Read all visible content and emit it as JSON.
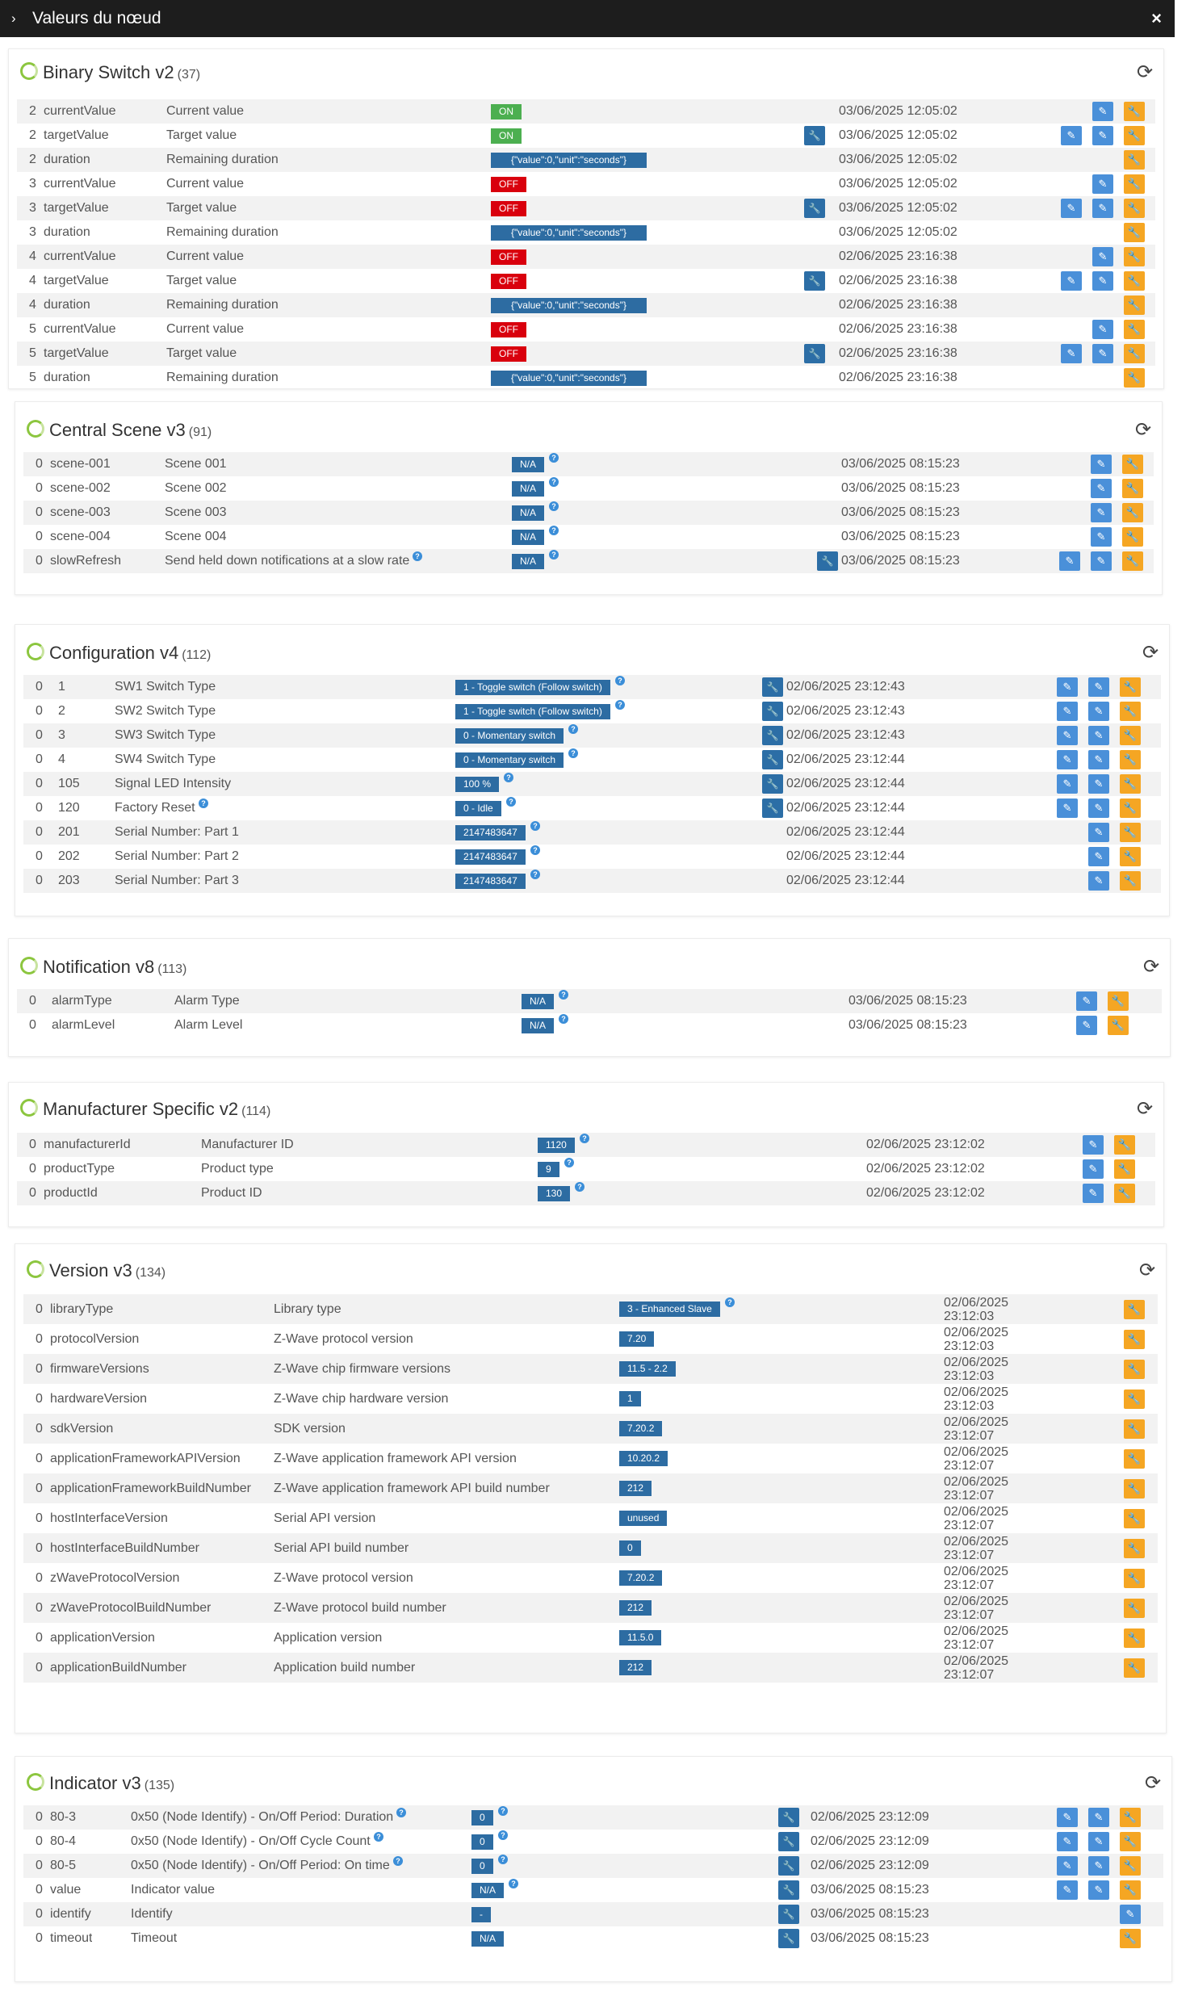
{
  "window": {
    "title": "Valeurs du nœud",
    "close_label": "×",
    "chevron": "›"
  },
  "icons": {
    "refresh": "refresh-icon",
    "edit": "pencil-icon",
    "wrench": "wrench-icon",
    "help": "help-icon",
    "loading": "loading-ring-icon"
  },
  "colors": {
    "on": "#4caf50",
    "off": "#d9000d",
    "value": "#2d6ca2",
    "edit_button": "#4a90d9",
    "config_button": "#f5a623",
    "ring": "#8cc63f"
  },
  "panels": {
    "binary": {
      "title": "Binary Switch v2",
      "count": "(37)",
      "rows": [
        [
          "2",
          "currentValue",
          "Current value",
          "ON",
          "03/06/2025 12:05:02"
        ],
        [
          "2",
          "targetValue",
          "Target value",
          "ON",
          "03/06/2025 12:05:02"
        ],
        [
          "2",
          "duration",
          "Remaining duration",
          "{\"value\":0,\"unit\":\"seconds\"}",
          "03/06/2025 12:05:02"
        ],
        [
          "3",
          "currentValue",
          "Current value",
          "OFF",
          "03/06/2025 12:05:02"
        ],
        [
          "3",
          "targetValue",
          "Target value",
          "OFF",
          "03/06/2025 12:05:02"
        ],
        [
          "3",
          "duration",
          "Remaining duration",
          "{\"value\":0,\"unit\":\"seconds\"}",
          "03/06/2025 12:05:02"
        ],
        [
          "4",
          "currentValue",
          "Current value",
          "OFF",
          "02/06/2025 23:16:38"
        ],
        [
          "4",
          "targetValue",
          "Target value",
          "OFF",
          "02/06/2025 23:16:38"
        ],
        [
          "4",
          "duration",
          "Remaining duration",
          "{\"value\":0,\"unit\":\"seconds\"}",
          "02/06/2025 23:16:38"
        ],
        [
          "5",
          "currentValue",
          "Current value",
          "OFF",
          "02/06/2025 23:16:38"
        ],
        [
          "5",
          "targetValue",
          "Target value",
          "OFF",
          "02/06/2025 23:16:38"
        ],
        [
          "5",
          "duration",
          "Remaining duration",
          "{\"value\":0,\"unit\":\"seconds\"}",
          "02/06/2025 23:16:38"
        ]
      ]
    },
    "central": {
      "title": "Central Scene v3",
      "count": "(91)",
      "rows": [
        [
          "0",
          "scene-001",
          "Scene 001",
          "N/A",
          "03/06/2025 08:15:23"
        ],
        [
          "0",
          "scene-002",
          "Scene 002",
          "N/A",
          "03/06/2025 08:15:23"
        ],
        [
          "0",
          "scene-003",
          "Scene 003",
          "N/A",
          "03/06/2025 08:15:23"
        ],
        [
          "0",
          "scene-004",
          "Scene 004",
          "N/A",
          "03/06/2025 08:15:23"
        ],
        [
          "0",
          "slowRefresh",
          "Send held down notifications at a slow rate",
          "N/A",
          "03/06/2025 08:15:23"
        ]
      ]
    },
    "config": {
      "title": "Configuration v4",
      "count": "(112)",
      "rows": [
        [
          "0",
          "1",
          "SW1 Switch Type",
          "1 - Toggle switch (Follow switch)",
          "02/06/2025 23:12:43"
        ],
        [
          "0",
          "2",
          "SW2 Switch Type",
          "1 - Toggle switch (Follow switch)",
          "02/06/2025 23:12:43"
        ],
        [
          "0",
          "3",
          "SW3 Switch Type",
          "0 - Momentary switch",
          "02/06/2025 23:12:43"
        ],
        [
          "0",
          "4",
          "SW4 Switch Type",
          "0 - Momentary switch",
          "02/06/2025 23:12:44"
        ],
        [
          "0",
          "105",
          "Signal LED Intensity",
          "100 %",
          "02/06/2025 23:12:44"
        ],
        [
          "0",
          "120",
          "Factory Reset",
          "0 - Idle",
          "02/06/2025 23:12:44"
        ],
        [
          "0",
          "201",
          "Serial Number: Part 1",
          "2147483647",
          "02/06/2025 23:12:44"
        ],
        [
          "0",
          "202",
          "Serial Number: Part 2",
          "2147483647",
          "02/06/2025 23:12:44"
        ],
        [
          "0",
          "203",
          "Serial Number: Part 3",
          "2147483647",
          "02/06/2025 23:12:44"
        ]
      ]
    },
    "notif": {
      "title": "Notification v8",
      "count": "(113)",
      "rows": [
        [
          "0",
          "alarmType",
          "Alarm Type",
          "N/A",
          "03/06/2025 08:15:23"
        ],
        [
          "0",
          "alarmLevel",
          "Alarm Level",
          "N/A",
          "03/06/2025 08:15:23"
        ]
      ]
    },
    "manuf": {
      "title": "Manufacturer Specific v2",
      "count": "(114)",
      "rows": [
        [
          "0",
          "manufacturerId",
          "Manufacturer ID",
          "1120",
          "02/06/2025 23:12:02"
        ],
        [
          "0",
          "productType",
          "Product type",
          "9",
          "02/06/2025 23:12:02"
        ],
        [
          "0",
          "productId",
          "Product ID",
          "130",
          "02/06/2025 23:12:02"
        ]
      ]
    },
    "version": {
      "title": "Version v3",
      "count": "(134)",
      "rows": [
        [
          "0",
          "libraryType",
          "Library type",
          "3 - Enhanced Slave",
          "02/06/2025",
          "23:12:03"
        ],
        [
          "0",
          "protocolVersion",
          "Z-Wave protocol version",
          "7.20",
          "02/06/2025",
          "23:12:03"
        ],
        [
          "0",
          "firmwareVersions",
          "Z-Wave chip firmware versions",
          "11.5 - 2.2",
          "02/06/2025",
          "23:12:03"
        ],
        [
          "0",
          "hardwareVersion",
          "Z-Wave chip hardware version",
          "1",
          "02/06/2025",
          "23:12:03"
        ],
        [
          "0",
          "sdkVersion",
          "SDK version",
          "7.20.2",
          "02/06/2025",
          "23:12:07"
        ],
        [
          "0",
          "applicationFrameworkAPIVersion",
          "Z-Wave application framework API version",
          "10.20.2",
          "02/06/2025",
          "23:12:07"
        ],
        [
          "0",
          "applicationFrameworkBuildNumber",
          "Z-Wave application framework API build number",
          "212",
          "02/06/2025",
          "23:12:07"
        ],
        [
          "0",
          "hostInterfaceVersion",
          "Serial API version",
          "unused",
          "02/06/2025",
          "23:12:07"
        ],
        [
          "0",
          "hostInterfaceBuildNumber",
          "Serial API build number",
          "0",
          "02/06/2025",
          "23:12:07"
        ],
        [
          "0",
          "zWaveProtocolVersion",
          "Z-Wave protocol version",
          "7.20.2",
          "02/06/2025",
          "23:12:07"
        ],
        [
          "0",
          "zWaveProtocolBuildNumber",
          "Z-Wave protocol build number",
          "212",
          "02/06/2025",
          "23:12:07"
        ],
        [
          "0",
          "applicationVersion",
          "Application version",
          "11.5.0",
          "02/06/2025",
          "23:12:07"
        ],
        [
          "0",
          "applicationBuildNumber",
          "Application build number",
          "212",
          "02/06/2025",
          "23:12:07"
        ]
      ]
    },
    "indicator": {
      "title": "Indicator v3",
      "count": "(135)",
      "rows": [
        [
          "0",
          "80-3",
          "0x50 (Node Identify) - On/Off Period: Duration",
          "0",
          "02/06/2025 23:12:09"
        ],
        [
          "0",
          "80-4",
          "0x50 (Node Identify) - On/Off Cycle Count",
          "0",
          "02/06/2025 23:12:09"
        ],
        [
          "0",
          "80-5",
          "0x50 (Node Identify) - On/Off Period: On time",
          "0",
          "02/06/2025 23:12:09"
        ],
        [
          "0",
          "value",
          "Indicator value",
          "N/A",
          "03/06/2025 08:15:23"
        ],
        [
          "0",
          "identify",
          "Identify",
          "-",
          "03/06/2025 08:15:23"
        ],
        [
          "0",
          "timeout",
          "Timeout",
          "N/A",
          "03/06/2025 08:15:23"
        ]
      ]
    }
  }
}
